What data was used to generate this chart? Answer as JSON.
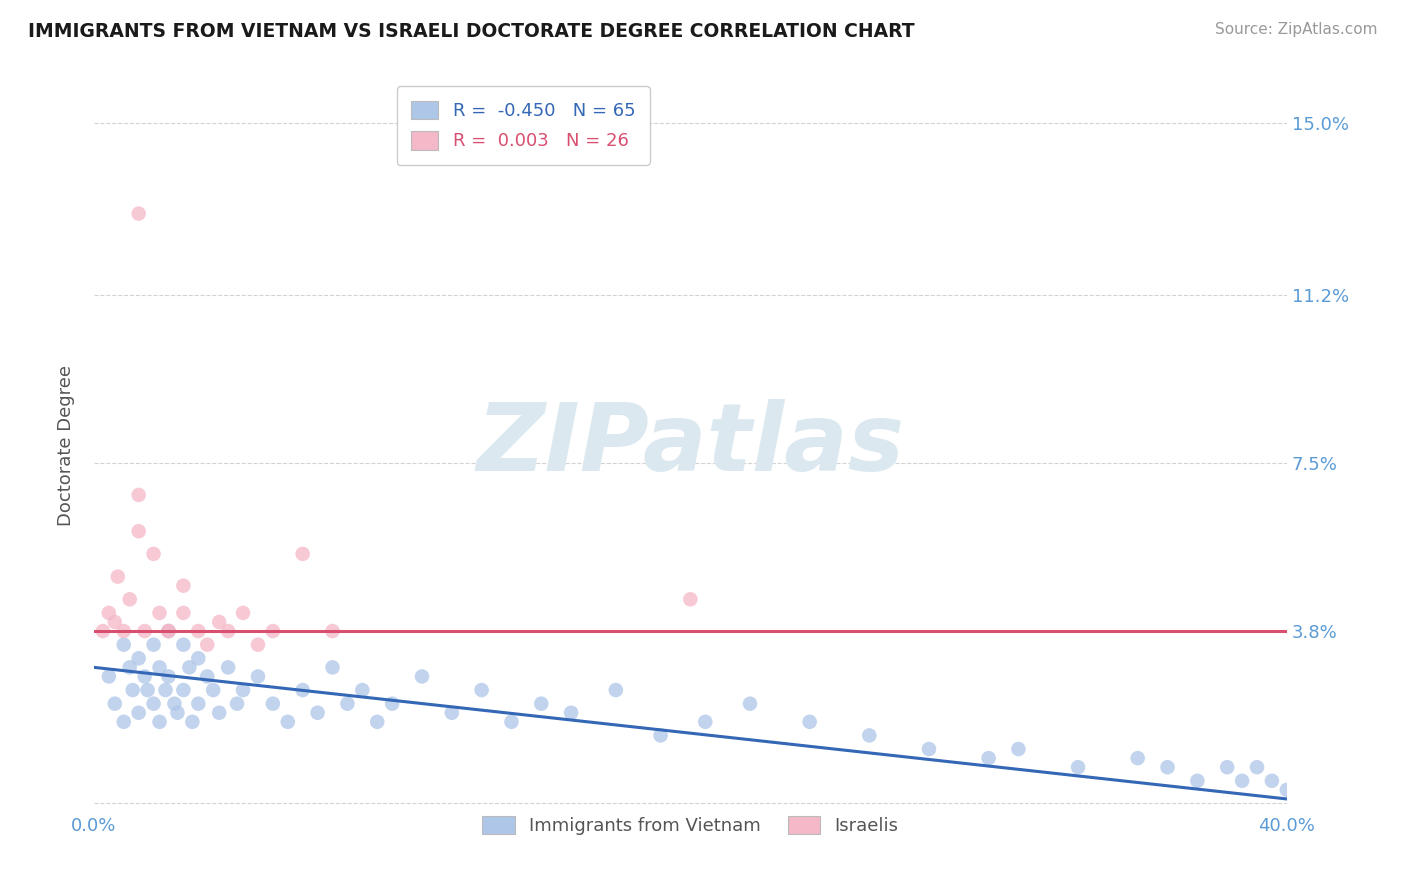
{
  "title": "IMMIGRANTS FROM VIETNAM VS ISRAELI DOCTORATE DEGREE CORRELATION CHART",
  "source": "Source: ZipAtlas.com",
  "ylabel": "Doctorate Degree",
  "legend_label1": "Immigrants from Vietnam",
  "legend_label2": "Israelis",
  "r1": "-0.450",
  "n1": "65",
  "r2": "0.003",
  "n2": "26",
  "xlim": [
    0.0,
    0.4
  ],
  "ylim": [
    -0.002,
    0.16
  ],
  "yticks": [
    0.0,
    0.038,
    0.075,
    0.112,
    0.15
  ],
  "ytick_labels": [
    "",
    "3.8%",
    "7.5%",
    "11.2%",
    "15.0%"
  ],
  "xticks": [
    0.0,
    0.05,
    0.1,
    0.15,
    0.2,
    0.25,
    0.3,
    0.35,
    0.4
  ],
  "xtick_labels": [
    "0.0%",
    "",
    "",
    "",
    "",
    "",
    "",
    "",
    "40.0%"
  ],
  "background_color": "#ffffff",
  "grid_color": "#c8c8c8",
  "title_color": "#1a1a1a",
  "axis_color": "#5b9bd5",
  "blue_dot_color": "#aec6e8",
  "pink_dot_color": "#f4b8c8",
  "blue_line_color": "#3467b5",
  "pink_line_color": "#d94f70",
  "watermark_text": "ZIPatlas",
  "watermark_color": "#dce8f0",
  "dot_size": 110,
  "dot_alpha": 0.75,
  "blue_line_y0": 0.03,
  "blue_line_y1": 0.001,
  "pink_line_y0": 0.038,
  "pink_line_y1": 0.038,
  "blue_scatter_x": [
    0.005,
    0.007,
    0.01,
    0.01,
    0.012,
    0.013,
    0.015,
    0.015,
    0.017,
    0.018,
    0.02,
    0.02,
    0.022,
    0.022,
    0.024,
    0.025,
    0.025,
    0.027,
    0.028,
    0.03,
    0.03,
    0.032,
    0.033,
    0.035,
    0.035,
    0.038,
    0.04,
    0.042,
    0.045,
    0.048,
    0.05,
    0.055,
    0.06,
    0.065,
    0.07,
    0.075,
    0.08,
    0.085,
    0.09,
    0.095,
    0.1,
    0.11,
    0.12,
    0.13,
    0.14,
    0.15,
    0.16,
    0.175,
    0.19,
    0.205,
    0.22,
    0.24,
    0.26,
    0.28,
    0.3,
    0.31,
    0.33,
    0.35,
    0.36,
    0.37,
    0.38,
    0.385,
    0.39,
    0.395,
    0.4
  ],
  "blue_scatter_y": [
    0.028,
    0.022,
    0.035,
    0.018,
    0.03,
    0.025,
    0.032,
    0.02,
    0.028,
    0.025,
    0.035,
    0.022,
    0.03,
    0.018,
    0.025,
    0.038,
    0.028,
    0.022,
    0.02,
    0.035,
    0.025,
    0.03,
    0.018,
    0.032,
    0.022,
    0.028,
    0.025,
    0.02,
    0.03,
    0.022,
    0.025,
    0.028,
    0.022,
    0.018,
    0.025,
    0.02,
    0.03,
    0.022,
    0.025,
    0.018,
    0.022,
    0.028,
    0.02,
    0.025,
    0.018,
    0.022,
    0.02,
    0.025,
    0.015,
    0.018,
    0.022,
    0.018,
    0.015,
    0.012,
    0.01,
    0.012,
    0.008,
    0.01,
    0.008,
    0.005,
    0.008,
    0.005,
    0.008,
    0.005,
    0.003
  ],
  "pink_scatter_x": [
    0.003,
    0.005,
    0.007,
    0.008,
    0.01,
    0.012,
    0.015,
    0.017,
    0.02,
    0.022,
    0.025,
    0.03,
    0.035,
    0.038,
    0.042,
    0.045,
    0.05,
    0.055,
    0.06,
    0.07,
    0.08,
    0.015,
    0.025,
    0.03,
    0.2,
    0.015
  ],
  "pink_scatter_y": [
    0.038,
    0.042,
    0.04,
    0.05,
    0.038,
    0.045,
    0.06,
    0.038,
    0.055,
    0.042,
    0.038,
    0.048,
    0.038,
    0.035,
    0.04,
    0.038,
    0.042,
    0.035,
    0.038,
    0.055,
    0.038,
    0.068,
    0.038,
    0.042,
    0.045,
    0.13
  ]
}
